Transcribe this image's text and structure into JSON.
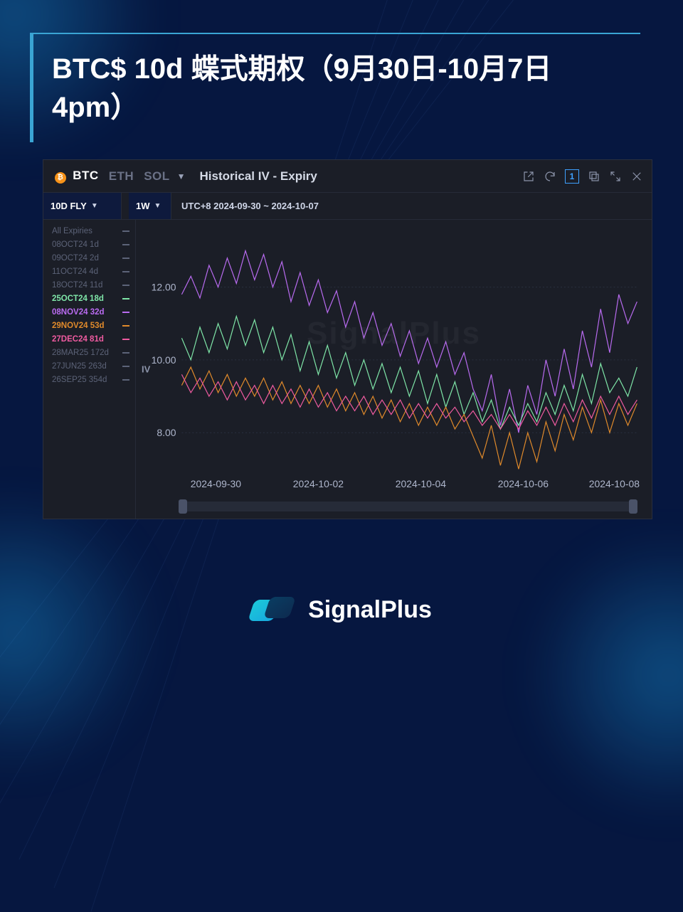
{
  "title": "BTC$ 10d 蝶式期权（9月30日-10月7日 4pm）",
  "panel": {
    "coins": [
      "BTC",
      "ETH",
      "SOL"
    ],
    "active_coin_index": 0,
    "header_title": "Historical IV - Expiry",
    "metric": {
      "label": "10D FLY"
    },
    "timeframe": {
      "label": "1W"
    },
    "date_range": "UTC+8 2024-09-30 ~ 2024-10-07",
    "toolbar_page": "1"
  },
  "chart": {
    "type": "line",
    "background_color": "#1b1e27",
    "grid_color": "#2a3040",
    "text_color": "#aeb6cc",
    "ylabel": "IV",
    "ylim": [
      7.0,
      13.5
    ],
    "yticks": [
      8.0,
      10.0,
      12.0
    ],
    "ytick_labels": [
      "8.00",
      "10.00",
      "12.00"
    ],
    "xlim": [
      0,
      200
    ],
    "xticks": [
      15,
      60,
      105,
      150,
      190
    ],
    "xtick_labels": [
      "2024-09-30",
      "2024-10-02",
      "2024-10-04",
      "2024-10-06",
      "2024-10-08"
    ],
    "watermark": "SignalPlus",
    "legend": [
      {
        "label": "All Expiries",
        "color": "#5c6378",
        "active": false
      },
      {
        "label": "08OCT24 1d",
        "color": "#5c6378",
        "active": false
      },
      {
        "label": "09OCT24 2d",
        "color": "#5c6378",
        "active": false
      },
      {
        "label": "11OCT24 4d",
        "color": "#5c6378",
        "active": false
      },
      {
        "label": "18OCT24 11d",
        "color": "#5c6378",
        "active": false
      },
      {
        "label": "25OCT24 18d",
        "color": "#7fe6a8",
        "active": true
      },
      {
        "label": "08NOV24 32d",
        "color": "#b96bf0",
        "active": true
      },
      {
        "label": "29NOV24 53d",
        "color": "#e08a2b",
        "active": true
      },
      {
        "label": "27DEC24 81d",
        "color": "#ef5ba0",
        "active": true
      },
      {
        "label": "28MAR25 172d",
        "color": "#5c6378",
        "active": false
      },
      {
        "label": "27JUN25 263d",
        "color": "#5c6378",
        "active": false
      },
      {
        "label": "26SEP25 354d",
        "color": "#5c6378",
        "active": false
      }
    ],
    "series": [
      {
        "name": "08NOV24",
        "color": "#b96bf0",
        "width": 1.3,
        "points": [
          [
            0,
            11.8
          ],
          [
            4,
            12.3
          ],
          [
            8,
            11.7
          ],
          [
            12,
            12.6
          ],
          [
            16,
            12.0
          ],
          [
            20,
            12.8
          ],
          [
            24,
            12.1
          ],
          [
            28,
            13.0
          ],
          [
            32,
            12.2
          ],
          [
            36,
            12.9
          ],
          [
            40,
            12.0
          ],
          [
            44,
            12.7
          ],
          [
            48,
            11.6
          ],
          [
            52,
            12.4
          ],
          [
            56,
            11.5
          ],
          [
            60,
            12.2
          ],
          [
            64,
            11.3
          ],
          [
            68,
            11.9
          ],
          [
            72,
            10.9
          ],
          [
            76,
            11.6
          ],
          [
            80,
            10.6
          ],
          [
            84,
            11.3
          ],
          [
            88,
            10.4
          ],
          [
            92,
            11.0
          ],
          [
            96,
            10.1
          ],
          [
            100,
            10.8
          ],
          [
            104,
            9.9
          ],
          [
            108,
            10.6
          ],
          [
            112,
            9.8
          ],
          [
            116,
            10.5
          ],
          [
            120,
            9.6
          ],
          [
            124,
            10.2
          ],
          [
            128,
            9.2
          ],
          [
            132,
            8.6
          ],
          [
            136,
            9.6
          ],
          [
            140,
            8.2
          ],
          [
            144,
            9.2
          ],
          [
            148,
            8.0
          ],
          [
            152,
            9.3
          ],
          [
            156,
            8.5
          ],
          [
            160,
            10.0
          ],
          [
            164,
            9.0
          ],
          [
            168,
            10.3
          ],
          [
            172,
            9.2
          ],
          [
            176,
            10.8
          ],
          [
            180,
            9.8
          ],
          [
            184,
            11.4
          ],
          [
            188,
            10.2
          ],
          [
            192,
            11.8
          ],
          [
            196,
            11.0
          ],
          [
            200,
            11.6
          ]
        ]
      },
      {
        "name": "25OCT24",
        "color": "#7fe6a8",
        "width": 1.3,
        "points": [
          [
            0,
            10.6
          ],
          [
            4,
            10.0
          ],
          [
            8,
            10.9
          ],
          [
            12,
            10.2
          ],
          [
            16,
            11.0
          ],
          [
            20,
            10.3
          ],
          [
            24,
            11.2
          ],
          [
            28,
            10.4
          ],
          [
            32,
            11.1
          ],
          [
            36,
            10.2
          ],
          [
            40,
            10.9
          ],
          [
            44,
            10.0
          ],
          [
            48,
            10.7
          ],
          [
            52,
            9.7
          ],
          [
            56,
            10.5
          ],
          [
            60,
            9.6
          ],
          [
            64,
            10.4
          ],
          [
            68,
            9.5
          ],
          [
            72,
            10.2
          ],
          [
            76,
            9.3
          ],
          [
            80,
            10.0
          ],
          [
            84,
            9.2
          ],
          [
            88,
            9.9
          ],
          [
            92,
            9.1
          ],
          [
            96,
            9.8
          ],
          [
            100,
            9.0
          ],
          [
            104,
            9.7
          ],
          [
            108,
            8.8
          ],
          [
            112,
            9.6
          ],
          [
            116,
            8.7
          ],
          [
            120,
            9.4
          ],
          [
            124,
            8.5
          ],
          [
            128,
            9.1
          ],
          [
            132,
            8.3
          ],
          [
            136,
            8.9
          ],
          [
            140,
            8.1
          ],
          [
            144,
            8.7
          ],
          [
            148,
            8.2
          ],
          [
            152,
            8.8
          ],
          [
            156,
            8.3
          ],
          [
            160,
            9.1
          ],
          [
            164,
            8.5
          ],
          [
            168,
            9.3
          ],
          [
            172,
            8.6
          ],
          [
            176,
            9.6
          ],
          [
            180,
            8.8
          ],
          [
            184,
            9.9
          ],
          [
            188,
            9.1
          ],
          [
            192,
            9.5
          ],
          [
            196,
            9.0
          ],
          [
            200,
            9.8
          ]
        ]
      },
      {
        "name": "29NOV24",
        "color": "#e08a2b",
        "width": 1.3,
        "points": [
          [
            0,
            9.3
          ],
          [
            4,
            9.8
          ],
          [
            8,
            9.2
          ],
          [
            12,
            9.7
          ],
          [
            16,
            9.1
          ],
          [
            20,
            9.6
          ],
          [
            24,
            9.0
          ],
          [
            28,
            9.5
          ],
          [
            32,
            9.0
          ],
          [
            36,
            9.5
          ],
          [
            40,
            8.9
          ],
          [
            44,
            9.4
          ],
          [
            48,
            8.8
          ],
          [
            52,
            9.3
          ],
          [
            56,
            8.8
          ],
          [
            60,
            9.3
          ],
          [
            64,
            8.7
          ],
          [
            68,
            9.2
          ],
          [
            72,
            8.6
          ],
          [
            76,
            9.1
          ],
          [
            80,
            8.5
          ],
          [
            84,
            9.0
          ],
          [
            88,
            8.4
          ],
          [
            92,
            8.9
          ],
          [
            96,
            8.3
          ],
          [
            100,
            8.8
          ],
          [
            104,
            8.2
          ],
          [
            108,
            8.7
          ],
          [
            112,
            8.2
          ],
          [
            116,
            8.7
          ],
          [
            120,
            8.1
          ],
          [
            124,
            8.5
          ],
          [
            128,
            7.9
          ],
          [
            132,
            7.3
          ],
          [
            136,
            8.2
          ],
          [
            140,
            7.1
          ],
          [
            144,
            8.0
          ],
          [
            148,
            7.0
          ],
          [
            152,
            8.0
          ],
          [
            156,
            7.2
          ],
          [
            160,
            8.3
          ],
          [
            164,
            7.5
          ],
          [
            168,
            8.5
          ],
          [
            172,
            7.8
          ],
          [
            176,
            8.7
          ],
          [
            180,
            8.0
          ],
          [
            184,
            8.9
          ],
          [
            188,
            8.0
          ],
          [
            192,
            8.8
          ],
          [
            196,
            8.2
          ],
          [
            200,
            8.8
          ]
        ]
      },
      {
        "name": "27DEC24",
        "color": "#ef5ba0",
        "width": 1.3,
        "points": [
          [
            0,
            9.6
          ],
          [
            4,
            9.1
          ],
          [
            8,
            9.5
          ],
          [
            12,
            9.0
          ],
          [
            16,
            9.4
          ],
          [
            20,
            8.9
          ],
          [
            24,
            9.4
          ],
          [
            28,
            8.9
          ],
          [
            32,
            9.3
          ],
          [
            36,
            8.8
          ],
          [
            40,
            9.3
          ],
          [
            44,
            8.8
          ],
          [
            48,
            9.2
          ],
          [
            52,
            8.7
          ],
          [
            56,
            9.2
          ],
          [
            60,
            8.7
          ],
          [
            64,
            9.1
          ],
          [
            68,
            8.6
          ],
          [
            72,
            9.0
          ],
          [
            76,
            8.6
          ],
          [
            80,
            9.0
          ],
          [
            84,
            8.5
          ],
          [
            88,
            8.9
          ],
          [
            92,
            8.5
          ],
          [
            96,
            8.9
          ],
          [
            100,
            8.4
          ],
          [
            104,
            8.8
          ],
          [
            108,
            8.4
          ],
          [
            112,
            8.8
          ],
          [
            116,
            8.4
          ],
          [
            120,
            8.7
          ],
          [
            124,
            8.3
          ],
          [
            128,
            8.6
          ],
          [
            132,
            8.2
          ],
          [
            136,
            8.5
          ],
          [
            140,
            8.1
          ],
          [
            144,
            8.5
          ],
          [
            148,
            8.1
          ],
          [
            152,
            8.6
          ],
          [
            156,
            8.2
          ],
          [
            160,
            8.7
          ],
          [
            164,
            8.2
          ],
          [
            168,
            8.8
          ],
          [
            172,
            8.3
          ],
          [
            176,
            8.9
          ],
          [
            180,
            8.4
          ],
          [
            184,
            9.0
          ],
          [
            188,
            8.5
          ],
          [
            192,
            9.0
          ],
          [
            196,
            8.5
          ],
          [
            200,
            8.9
          ]
        ]
      }
    ]
  },
  "brand": "SignalPlus"
}
